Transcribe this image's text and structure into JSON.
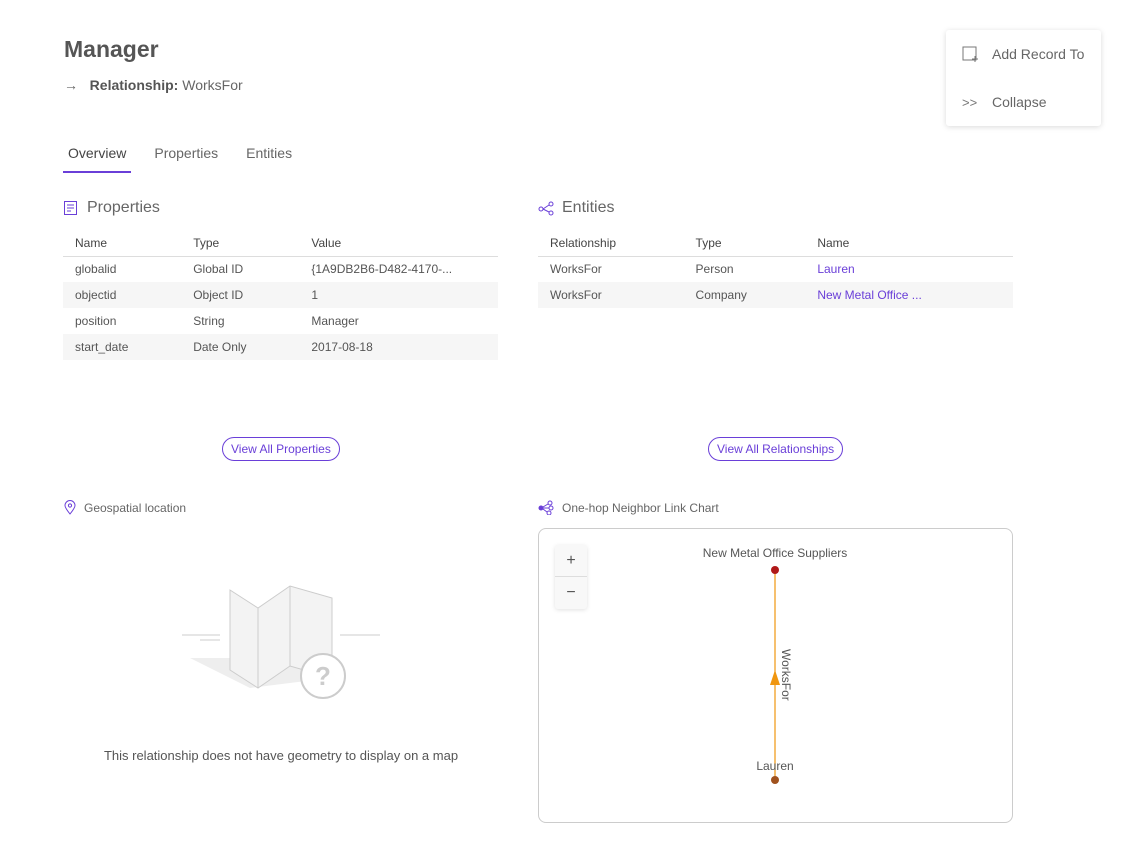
{
  "header": {
    "title": "Manager",
    "relationship_label": "Relationship:",
    "relationship_value": "WorksFor",
    "arrow": "→"
  },
  "menu": {
    "items": [
      {
        "label": "Add Record To",
        "icon": "add-record-icon"
      },
      {
        "label": "Collapse",
        "icon": "collapse-icon"
      }
    ]
  },
  "tabs": [
    {
      "label": "Overview",
      "active": true
    },
    {
      "label": "Properties"
    },
    {
      "label": "Entities"
    }
  ],
  "properties": {
    "title": "Properties",
    "columns": [
      "Name",
      "Type",
      "Value"
    ],
    "rows": [
      [
        "globalid",
        "Global ID",
        "{1A9DB2B6-D482-4170-..."
      ],
      [
        "objectid",
        "Object ID",
        "1"
      ],
      [
        "position",
        "String",
        "Manager"
      ],
      [
        "start_date",
        "Date Only",
        "2017-08-18"
      ]
    ],
    "button": "View All Properties"
  },
  "entities": {
    "title": "Entities",
    "columns": [
      "Relationship",
      "Type",
      "Name"
    ],
    "rows": [
      [
        "WorksFor",
        "Person",
        "Lauren"
      ],
      [
        "WorksFor",
        "Company",
        "New Metal Office ..."
      ]
    ],
    "button": "View All Relationships"
  },
  "geo": {
    "title": "Geospatial location",
    "message": "This relationship does not have geometry to display on a map"
  },
  "linkchart": {
    "title": "One-hop Neighbor Link Chart",
    "zoom_in": "+",
    "zoom_out": "−",
    "nodes": [
      {
        "label": "New Metal Office Suppliers",
        "color": "#b01818"
      },
      {
        "label": "Lauren",
        "color": "#a0521e"
      }
    ],
    "edge": {
      "label": "WorksFor",
      "color": "#f0960f"
    }
  },
  "colors": {
    "accent": "#6a3fd8"
  }
}
